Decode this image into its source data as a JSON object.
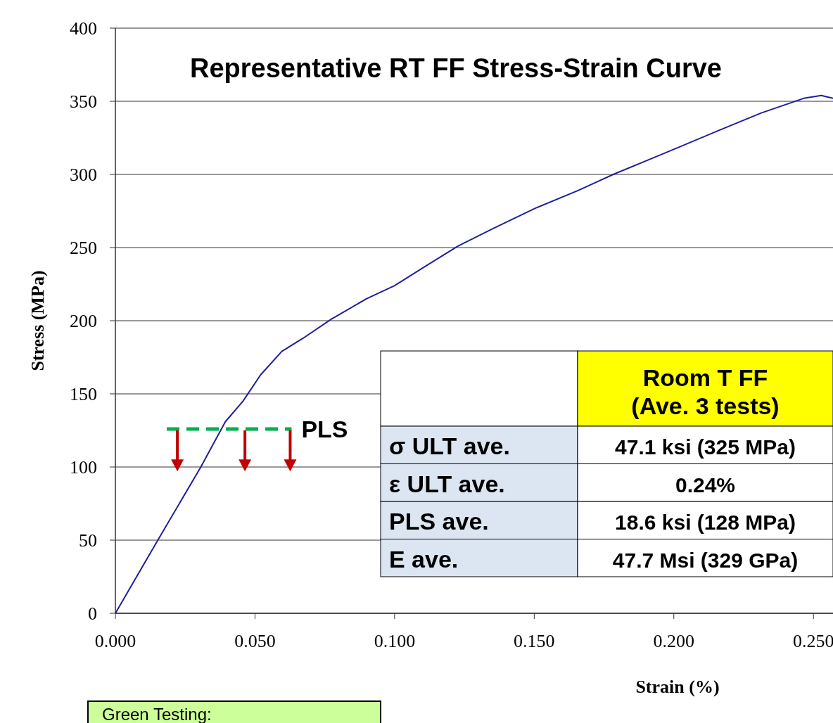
{
  "chart_data": {
    "type": "line",
    "title": "Representative RT FF Stress-Strain Curve",
    "xlabel": "Strain (%)",
    "ylabel": "Stress (MPa)",
    "xlim": [
      0,
      0.257
    ],
    "xticks": [
      {
        "value": 0,
        "label": "0.000"
      },
      {
        "value": 0.05,
        "label": "0.050"
      },
      {
        "value": 0.1,
        "label": "0.100"
      },
      {
        "value": 0.15,
        "label": "0.150"
      },
      {
        "value": 0.2,
        "label": "0.200"
      },
      {
        "value": 0.25,
        "label": "0.250"
      }
    ],
    "ylim": [
      0,
      400
    ],
    "yticks": [
      0,
      50,
      100,
      150,
      200,
      250,
      300,
      350,
      400
    ],
    "grid": "y",
    "series": [
      {
        "color": "#1f1f9a",
        "x": [
          0,
          0.0152,
          0.0306,
          0.0394,
          0.0457,
          0.052,
          0.0596,
          0.0672,
          0.0773,
          0.0899,
          0.1,
          0.11,
          0.1227,
          0.1353,
          0.1505,
          0.1657,
          0.1783,
          0.191,
          0.201,
          0.216,
          0.2313,
          0.2465,
          0.2528,
          0.257
        ],
        "values": [
          0,
          50,
          100,
          131,
          145,
          163,
          179,
          188,
          201,
          215,
          224,
          236,
          251,
          263,
          277,
          289,
          300,
          310,
          318,
          330,
          342,
          352,
          354,
          352
        ]
      },
      {
        "name": "PLS",
        "color": "#00b050",
        "line_style": "dashed",
        "x": [
          0.0184,
          0.0631
        ],
        "values": [
          126,
          126
        ]
      }
    ],
    "annotations": [
      "Room T  FF (Ave. 3 tests)",
      "σ ULT ave.",
      "47.1 ksi  (325 MPa)",
      "ε ULT ave.",
      "0.24%",
      "PLS ave.",
      "18.6 ksi  (128 MPa)",
      "E ave.",
      "47.7 Msi  (329 GPa)",
      "Green Testing:"
    ]
  }
}
